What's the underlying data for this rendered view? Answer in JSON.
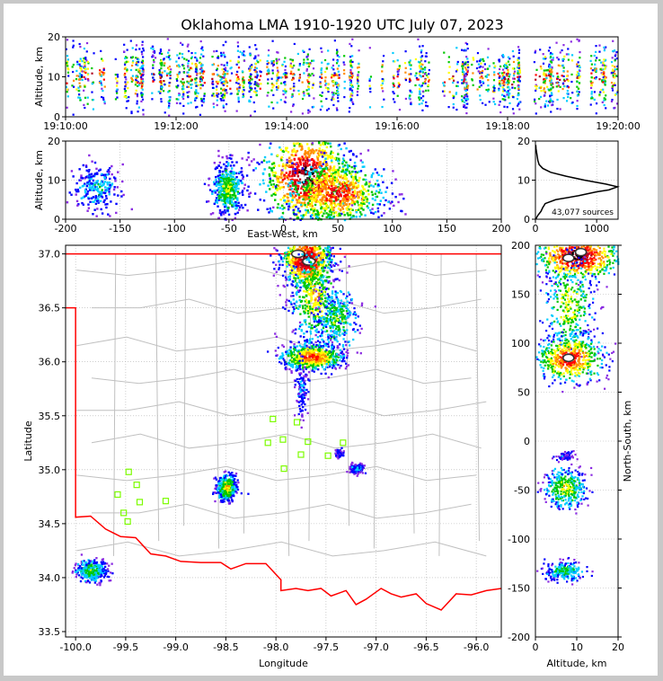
{
  "title": "Oklahoma LMA 1910-1920 UTC July 07, 2023",
  "source_count": "43,077 sources",
  "colors": {
    "density": [
      "#8a2be2",
      "#0000ff",
      "#00ccff",
      "#00c800",
      "#ffff00",
      "#ff8c00",
      "#ff0000",
      "#b00020",
      "#000000",
      "#ffffff"
    ],
    "state_border": "#ff0000",
    "county_lines": "#c0c0c0",
    "stations": "#7cfc00"
  },
  "chart_data": [
    {
      "id": "time-altitude",
      "type": "scatter",
      "xlabel": "",
      "ylabel": "Altitude, km",
      "xlim": [
        "19:10:00",
        "19:20:00"
      ],
      "ylim": [
        0,
        20
      ],
      "xticks": [
        "19:10:00",
        "19:12:00",
        "19:14:00",
        "19:16:00",
        "19:18:00",
        "19:20:00"
      ],
      "yticks": [
        0,
        10,
        20
      ],
      "grid": false,
      "activity_peak_altitude_km": 10
    },
    {
      "id": "ew-altitude",
      "type": "scatter",
      "xlabel": "East-West, km",
      "ylabel": "Altitude, km",
      "xlim": [
        -200,
        200
      ],
      "ylim": [
        0,
        20
      ],
      "xticks": [
        -200,
        -150,
        -100,
        -50,
        0,
        50,
        100,
        150,
        200
      ],
      "yticks": [
        0,
        10,
        20
      ],
      "grid": true,
      "clusters": [
        {
          "x": -172,
          "z": 8,
          "dx": 10,
          "dz": 3,
          "weight": 0.25
        },
        {
          "x": -52,
          "z": 8,
          "dx": 7,
          "dz": 3.5,
          "weight": 0.45
        },
        {
          "x": 20,
          "z": 11,
          "dx": 20,
          "dz": 6,
          "weight": 1.0
        },
        {
          "x": 48,
          "z": 7,
          "dx": 22,
          "dz": 4,
          "weight": 0.8
        }
      ]
    },
    {
      "id": "altitude-histogram",
      "type": "line",
      "xlabel": "",
      "ylabel": "",
      "xlim": [
        0,
        1350
      ],
      "ylim": [
        0,
        20
      ],
      "xticks": [
        0,
        1000
      ],
      "yticks": [
        0,
        10,
        20
      ],
      "grid": true,
      "x": [
        5,
        40,
        90,
        120,
        160,
        330,
        700,
        1000,
        1200,
        1340,
        1150,
        800,
        500,
        250,
        120,
        60,
        40,
        30,
        20,
        10,
        5
      ],
      "y": [
        0,
        1,
        2,
        3,
        4,
        5,
        6,
        7,
        7.5,
        8.3,
        9,
        10,
        11,
        12,
        13,
        14,
        15,
        16,
        17,
        18,
        19
      ]
    },
    {
      "id": "plan-view",
      "type": "scatter",
      "xlabel": "Longitude",
      "ylabel": "Latitude",
      "xlim": [
        -100.1,
        -95.75
      ],
      "ylim": [
        33.45,
        37.08
      ],
      "xticks": [
        -100.0,
        -99.5,
        -99.0,
        -98.5,
        -98.0,
        -97.5,
        -97.0,
        -96.5,
        -96.0
      ],
      "yticks": [
        33.5,
        34.0,
        34.5,
        35.0,
        35.5,
        36.0,
        36.5,
        37.0
      ],
      "grid": true,
      "stations": [
        {
          "lon": -98.03,
          "lat": 35.47
        },
        {
          "lon": -97.79,
          "lat": 35.44
        },
        {
          "lon": -98.08,
          "lat": 35.25
        },
        {
          "lon": -97.93,
          "lat": 35.28
        },
        {
          "lon": -97.68,
          "lat": 35.26
        },
        {
          "lon": -97.33,
          "lat": 35.25
        },
        {
          "lon": -97.75,
          "lat": 35.14
        },
        {
          "lon": -97.48,
          "lat": 35.13
        },
        {
          "lon": -97.92,
          "lat": 35.01
        },
        {
          "lon": -99.47,
          "lat": 34.98
        },
        {
          "lon": -99.39,
          "lat": 34.86
        },
        {
          "lon": -99.58,
          "lat": 34.77
        },
        {
          "lon": -99.36,
          "lat": 34.7
        },
        {
          "lon": -99.1,
          "lat": 34.71
        },
        {
          "lon": -99.52,
          "lat": 34.6
        },
        {
          "lon": -99.48,
          "lat": 34.52
        }
      ],
      "clusters": [
        {
          "lon": -97.7,
          "lat": 36.95,
          "dlon": 0.12,
          "dlat": 0.12,
          "weight": 1.0,
          "peak": true
        },
        {
          "lon": -97.62,
          "lat": 36.6,
          "dlon": 0.12,
          "dlat": 0.22,
          "weight": 0.55
        },
        {
          "lon": -97.4,
          "lat": 36.4,
          "dlon": 0.1,
          "dlat": 0.15,
          "weight": 0.4
        },
        {
          "lon": -97.65,
          "lat": 36.05,
          "dlon": 0.15,
          "dlat": 0.06,
          "weight": 0.75
        },
        {
          "lon": -97.75,
          "lat": 35.75,
          "dlon": 0.03,
          "dlat": 0.12,
          "weight": 0.15
        },
        {
          "lon": -98.5,
          "lat": 34.84,
          "dlon": 0.05,
          "dlat": 0.06,
          "weight": 0.55
        },
        {
          "lon": -99.85,
          "lat": 34.07,
          "dlon": 0.08,
          "dlat": 0.05,
          "weight": 0.4
        },
        {
          "lon": -97.2,
          "lat": 35.02,
          "dlon": 0.03,
          "dlat": 0.02,
          "weight": 0.25
        },
        {
          "lon": -97.38,
          "lat": 35.16,
          "dlon": 0.02,
          "dlat": 0.02,
          "weight": 0.1
        }
      ]
    },
    {
      "id": "altitude-ns",
      "type": "scatter",
      "xlabel": "Altitude, km",
      "ylabel": "North-South, km",
      "xlim": [
        0,
        20
      ],
      "ylim": [
        -200,
        200
      ],
      "xticks": [
        0,
        10,
        20
      ],
      "yticks": [
        -200,
        -150,
        -100,
        -50,
        0,
        50,
        100,
        150,
        200
      ],
      "grid": true,
      "clusters": [
        {
          "z": 10,
          "y": 190,
          "dz": 5,
          "dy": 12,
          "weight": 1.0
        },
        {
          "z": 8,
          "y": 140,
          "dz": 3,
          "dy": 25,
          "weight": 0.5
        },
        {
          "z": 8,
          "y": 85,
          "dz": 4,
          "dy": 12,
          "weight": 0.8
        },
        {
          "z": 7,
          "y": -47,
          "dz": 2.5,
          "dy": 10,
          "weight": 0.5
        },
        {
          "z": 7,
          "y": -132,
          "dz": 2.5,
          "dy": 5,
          "weight": 0.35
        },
        {
          "z": 7,
          "y": -15,
          "dz": 1,
          "dy": 2,
          "weight": 0.1
        }
      ]
    }
  ]
}
